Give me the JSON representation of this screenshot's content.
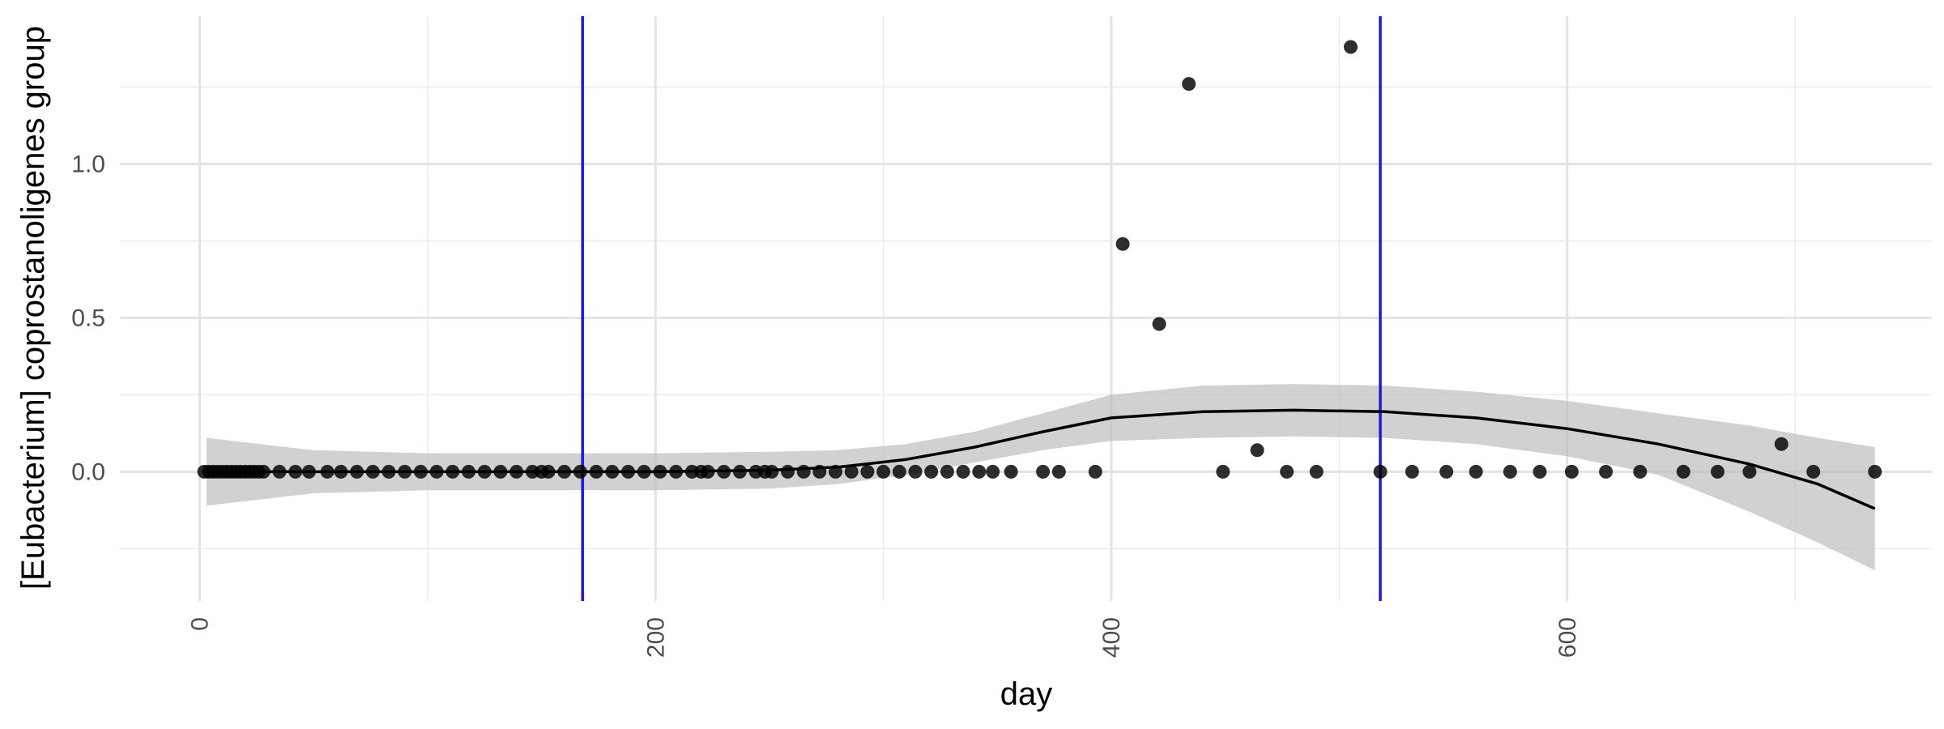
{
  "chart_data": {
    "type": "scatter",
    "xlabel": "day",
    "ylabel": "[Eubacterium] coprostanoligenes group",
    "xlim": [
      -35,
      760
    ],
    "ylim": [
      -0.42,
      1.48
    ],
    "x_ticks": [
      0,
      200,
      400,
      600
    ],
    "y_ticks": [
      0.0,
      0.5,
      1.0
    ],
    "y_tick_labels": [
      "0.0",
      "0.5",
      "1.0"
    ],
    "grid": true,
    "colors": {
      "points": "#000000",
      "smooth": "#000000",
      "ribbon": "#bdbdbd",
      "vlines": "#1a1adb",
      "grid": "#ebebeb"
    },
    "vlines": [
      168,
      518
    ],
    "points": [
      [
        2,
        0
      ],
      [
        4,
        0
      ],
      [
        6,
        0
      ],
      [
        8,
        0
      ],
      [
        10,
        0
      ],
      [
        12,
        0
      ],
      [
        14,
        0
      ],
      [
        16,
        0
      ],
      [
        18,
        0
      ],
      [
        20,
        0
      ],
      [
        22,
        0
      ],
      [
        24,
        0
      ],
      [
        26,
        0
      ],
      [
        28,
        0
      ],
      [
        35,
        0
      ],
      [
        42,
        0
      ],
      [
        48,
        0
      ],
      [
        56,
        0
      ],
      [
        62,
        0
      ],
      [
        69,
        0
      ],
      [
        76,
        0
      ],
      [
        83,
        0
      ],
      [
        90,
        0
      ],
      [
        97,
        0
      ],
      [
        104,
        0
      ],
      [
        111,
        0
      ],
      [
        118,
        0
      ],
      [
        125,
        0
      ],
      [
        132,
        0
      ],
      [
        139,
        0
      ],
      [
        146,
        0
      ],
      [
        150,
        0
      ],
      [
        153,
        0
      ],
      [
        160,
        0
      ],
      [
        167,
        0
      ],
      [
        174,
        0
      ],
      [
        181,
        0
      ],
      [
        188,
        0
      ],
      [
        195,
        0
      ],
      [
        202,
        0
      ],
      [
        209,
        0
      ],
      [
        216,
        0
      ],
      [
        220,
        0
      ],
      [
        223,
        0
      ],
      [
        230,
        0
      ],
      [
        237,
        0
      ],
      [
        244,
        0
      ],
      [
        248,
        0
      ],
      [
        251,
        0
      ],
      [
        258,
        0
      ],
      [
        265,
        0
      ],
      [
        272,
        0
      ],
      [
        279,
        0
      ],
      [
        286,
        0
      ],
      [
        293,
        0
      ],
      [
        300,
        0
      ],
      [
        307,
        0
      ],
      [
        314,
        0
      ],
      [
        321,
        0
      ],
      [
        328,
        0
      ],
      [
        335,
        0
      ],
      [
        342,
        0
      ],
      [
        348,
        0
      ],
      [
        356,
        0
      ],
      [
        370,
        0
      ],
      [
        377,
        0
      ],
      [
        393,
        0
      ],
      [
        405,
        0.74
      ],
      [
        421,
        0.48
      ],
      [
        434,
        1.26
      ],
      [
        449,
        0
      ],
      [
        464,
        0.07
      ],
      [
        477,
        0
      ],
      [
        490,
        0
      ],
      [
        505,
        1.38
      ],
      [
        518,
        0
      ],
      [
        532,
        0
      ],
      [
        547,
        0
      ],
      [
        560,
        0
      ],
      [
        575,
        0
      ],
      [
        588,
        0
      ],
      [
        602,
        0
      ],
      [
        617,
        0
      ],
      [
        632,
        0
      ],
      [
        651,
        0
      ],
      [
        666,
        0
      ],
      [
        680,
        0
      ],
      [
        694,
        0.09
      ],
      [
        708,
        0
      ],
      [
        735,
        0
      ]
    ],
    "smooth": {
      "x": [
        3,
        50,
        100,
        150,
        200,
        250,
        280,
        310,
        340,
        370,
        400,
        440,
        480,
        520,
        560,
        600,
        640,
        680,
        710,
        735
      ],
      "y": [
        0,
        0,
        0,
        0,
        0,
        0.005,
        0.015,
        0.04,
        0.08,
        0.13,
        0.175,
        0.195,
        0.2,
        0.195,
        0.175,
        0.14,
        0.09,
        0.025,
        -0.04,
        -0.12
      ],
      "lower": [
        -0.11,
        -0.07,
        -0.06,
        -0.06,
        -0.06,
        -0.055,
        -0.04,
        -0.01,
        0.03,
        0.07,
        0.1,
        0.11,
        0.115,
        0.11,
        0.09,
        0.05,
        -0.01,
        -0.13,
        -0.23,
        -0.32
      ],
      "upper": [
        0.11,
        0.07,
        0.06,
        0.06,
        0.06,
        0.065,
        0.07,
        0.09,
        0.13,
        0.19,
        0.25,
        0.28,
        0.285,
        0.28,
        0.26,
        0.23,
        0.19,
        0.15,
        0.11,
        0.08
      ]
    }
  }
}
